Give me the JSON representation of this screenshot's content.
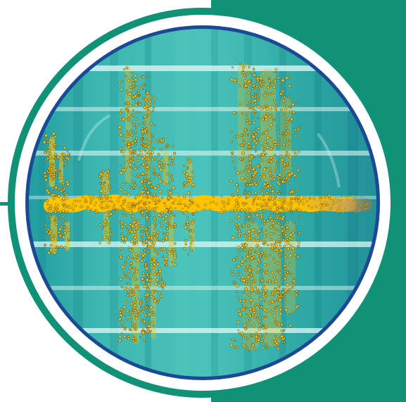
{
  "colors": {
    "background": "#ffffff",
    "teal_panel": "#119175",
    "outer_ring": "#0f8f74",
    "frame_ring": "#1b4a95",
    "screen_base": "#2aa8a2",
    "screen_light": "#57c6bf",
    "screen_dark": "#167f86",
    "grid_line": "#d9f5f3",
    "signal_core": "#ffc400",
    "signal_dots": "#f3c21e",
    "dot_outline": "#3a2400",
    "fade_tip": "#a48a56"
  },
  "icons": {
    "scope_screen": "oscilloscope-screen-icon",
    "waveform": "audio-waveform-icon"
  }
}
